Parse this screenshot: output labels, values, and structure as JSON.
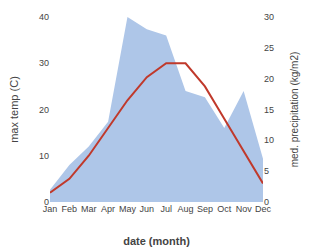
{
  "chart_data": {
    "type": "line",
    "xlabel": "date (month)",
    "ylabel": "max temp (C)",
    "y2label": "med. precipitation (kg/m2)",
    "categories": [
      "Jan",
      "Feb",
      "Mar",
      "Apr",
      "May",
      "Jun",
      "Jul",
      "Aug",
      "Sep",
      "Oct",
      "Nov",
      "Dec"
    ],
    "series": [
      {
        "type": "area",
        "axis": "y2",
        "color": "#aec6e8",
        "values": [
          2,
          6,
          9,
          13,
          30,
          28,
          27,
          18,
          17,
          12,
          18,
          7
        ]
      },
      {
        "type": "line",
        "color": "#c0392b",
        "values": [
          2,
          5,
          10,
          16,
          22,
          27,
          30,
          30,
          25,
          18,
          11,
          4
        ]
      }
    ],
    "ylim": [
      0,
      40
    ],
    "yticks": [
      0,
      10,
      20,
      30,
      40
    ],
    "y2lim": [
      0,
      30
    ],
    "y2ticks": [
      0,
      5,
      10,
      15,
      20,
      25,
      30
    ],
    "grid": false
  }
}
